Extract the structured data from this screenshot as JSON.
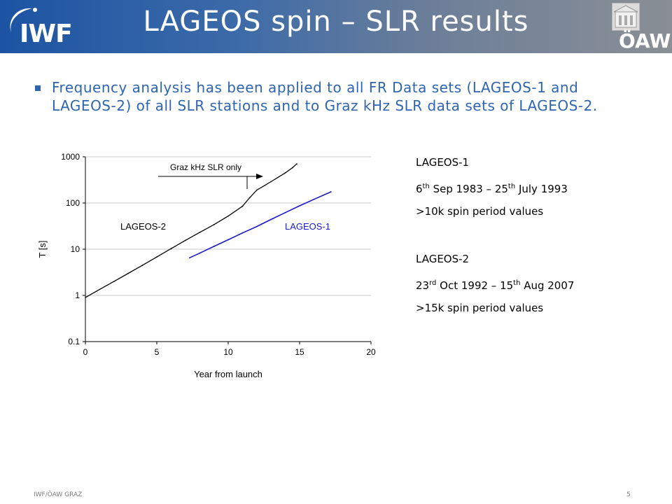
{
  "header": {
    "title": "LAGEOS spin – SLR results",
    "logo_left": "IWF",
    "logo_right": "ÖAW"
  },
  "bullet": {
    "text": "Frequency analysis has been applied to all FR Data sets (LAGEOS-1 and LAGEOS-2) of all SLR stations and to Graz kHz SLR data sets of LAGEOS-2."
  },
  "chart_data": {
    "type": "line",
    "xlabel": "Year from launch",
    "ylabel": "T [s]",
    "xlim": [
      0,
      20
    ],
    "ylim": [
      0.1,
      1000
    ],
    "y_scale": "log",
    "x_ticks": [
      "0",
      "5",
      "10",
      "15",
      "20"
    ],
    "y_ticks": [
      "0.1",
      "1",
      "10",
      "100",
      "1000"
    ],
    "grid": "horizontal",
    "annotation": "Graz kHz SLR only",
    "series": [
      {
        "name": "LAGEOS-2",
        "color": "#000000",
        "x": [
          0,
          1,
          2,
          3,
          4,
          5,
          6,
          7,
          8,
          9,
          10,
          11,
          11.5,
          12,
          13,
          14,
          14.5,
          14.8
        ],
        "y": [
          0.9,
          1.35,
          2.0,
          3.0,
          4.5,
          6.8,
          10.3,
          15.5,
          23,
          34,
          52,
          85,
          130,
          190,
          290,
          450,
          580,
          700
        ]
      },
      {
        "name": "LAGEOS-1",
        "color": "#1a1acc",
        "x": [
          7.3,
          8,
          9,
          10,
          11,
          12,
          13,
          14,
          15,
          16,
          17.2
        ],
        "y": [
          6.5,
          8.2,
          11.5,
          16,
          22.5,
          31,
          44,
          62,
          87,
          120,
          175
        ]
      }
    ],
    "series_labels": [
      {
        "text": "LAGEOS-2",
        "color": "#000000"
      },
      {
        "text": "LAGEOS-1",
        "color": "#1a1acc"
      }
    ]
  },
  "info": {
    "l1_title": "LAGEOS-1",
    "l1_day1": "6",
    "l1_sup1": "th",
    "l1_mid1": " Sep 1983 – 25",
    "l1_sup2": "th",
    "l1_end1": " July 1993",
    "l1_count": ">10k spin period values",
    "l2_title": "LAGEOS-2",
    "l2_day1": "23",
    "l2_sup1": "rd",
    "l2_mid1": " Oct 1992 – 15",
    "l2_sup2": "th",
    "l2_end1": " Aug 2007",
    "l2_count": ">15k spin period values"
  },
  "footer": {
    "left": "IWF/ÖAW GRAZ",
    "page": "5"
  }
}
